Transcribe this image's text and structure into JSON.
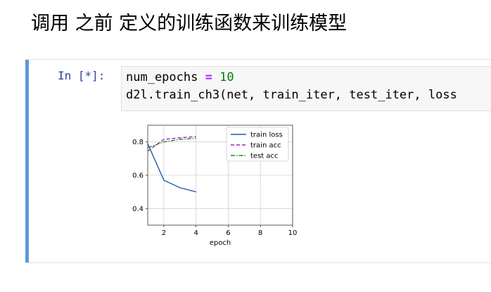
{
  "heading": "调用 之前 定义的训练函数来训练模型",
  "cell": {
    "prompt": "In [*]:",
    "code": {
      "line1": {
        "name": "num_epochs",
        "op": "=",
        "value": "10"
      },
      "line2": "d2l.train_ch3(net, train_iter, test_iter, loss"
    },
    "accent_color": "#5b9bd5"
  },
  "chart_data": {
    "type": "line",
    "xlabel": "epoch",
    "ylabel": "",
    "xlim": [
      1,
      10
    ],
    "ylim": [
      0.3,
      0.9
    ],
    "xticks": [
      2,
      4,
      6,
      8,
      10
    ],
    "yticks": [
      0.4,
      0.6,
      0.8
    ],
    "grid": true,
    "legend_position": "top-right",
    "series": [
      {
        "name": "train loss",
        "color": "#1f5fa8",
        "dash": "solid",
        "x": [
          1,
          2,
          3,
          4
        ],
        "y": [
          0.79,
          0.57,
          0.525,
          0.5
        ]
      },
      {
        "name": "train acc",
        "color": "#9c27b0",
        "dash": "dashed",
        "x": [
          1,
          2,
          3,
          4
        ],
        "y": [
          0.745,
          0.815,
          0.825,
          0.832
        ]
      },
      {
        "name": "test acc",
        "color": "#2e7d32",
        "dash": "dashdot",
        "x": [
          1,
          2,
          3,
          4
        ],
        "y": [
          0.765,
          0.8,
          0.815,
          0.822
        ]
      }
    ]
  }
}
